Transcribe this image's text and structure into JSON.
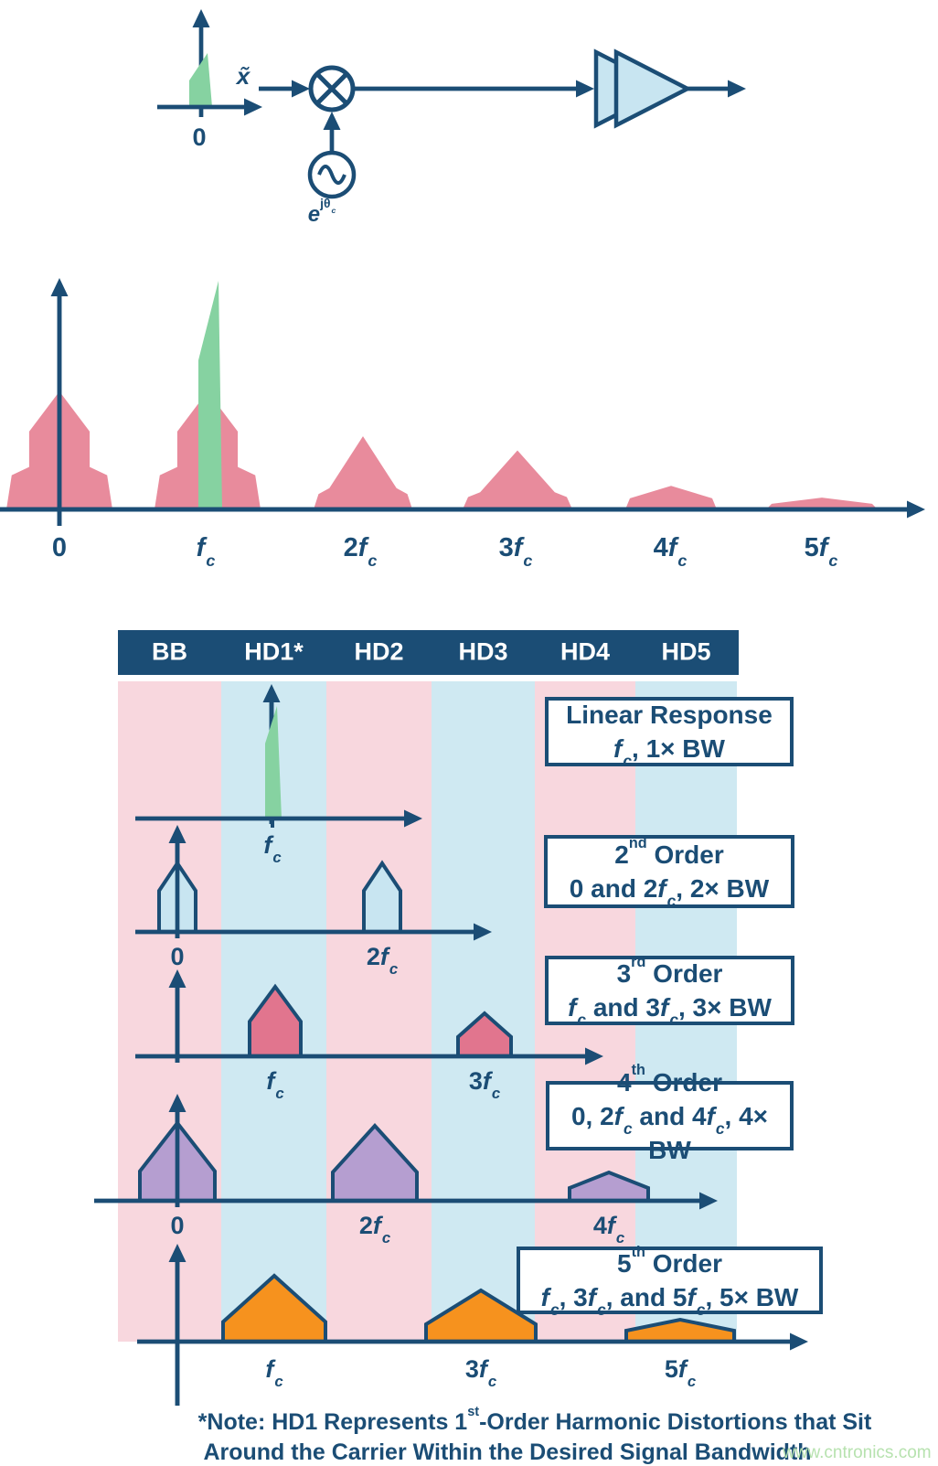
{
  "colors": {
    "navy": "#1b4d75",
    "white": "#ffffff",
    "spectrum_pink": "#e88b9c",
    "band_pink": "#f8d7de",
    "band_blue": "#cfe9f2",
    "shape_blue": "#c8e5f1",
    "green": "#86d2a1",
    "rose": "#e1758e",
    "purple": "#b59ed0",
    "orange": "#f6921e",
    "watermark_green": "#b7e2af"
  },
  "block_diagram": {
    "input_label": "x̃",
    "axis_zero_label": "0",
    "oscillator_label": "e^{jθ_c}",
    "icons": {
      "mixer": "circle-multiply",
      "oscillator": "circle-sine-wave",
      "amplifier": "double-triangle-gain"
    }
  },
  "spectrum": {
    "axis_labels": [
      "0",
      "f_c",
      "2f_c",
      "3f_c",
      "4f_c",
      "5f_c"
    ]
  },
  "chart_data": {
    "type": "area",
    "title": "",
    "categories": [
      "0",
      "f_c",
      "2f_c",
      "3f_c",
      "4f_c",
      "5f_c"
    ],
    "values": [
      1.0,
      1.0,
      0.62,
      0.5,
      0.2,
      0.1
    ],
    "xlabel": "",
    "ylabel": "",
    "legend_position": "none",
    "grid": false
  },
  "harmonic_table": {
    "columns": [
      {
        "label": "BB",
        "band": "pink"
      },
      {
        "label": "HD1*",
        "band": "blue"
      },
      {
        "label": "HD2",
        "band": "pink"
      },
      {
        "label": "HD3",
        "band": "blue"
      },
      {
        "label": "HD4",
        "band": "pink"
      },
      {
        "label": "HD5",
        "band": "blue"
      }
    ],
    "rows": [
      {
        "id": "linear",
        "box_line1": "Linear Response",
        "box_line2": "f_c, 1× BW",
        "tick_labels": [
          "f_c"
        ]
      },
      {
        "id": "order-2",
        "box_line1": "2^{nd} Order",
        "box_line2": "0 and 2f_c, 2× BW",
        "tick_labels": [
          "0",
          "2f_c"
        ]
      },
      {
        "id": "order-3",
        "box_line1": "3^{rd} Order",
        "box_line2": "f_c and 3f_c, 3× BW",
        "tick_labels": [
          "f_c",
          "3f_c"
        ]
      },
      {
        "id": "order-4",
        "box_line1": "4^{th} Order",
        "box_line2": "0, 2f_c and 4f_c, 4× BW",
        "tick_labels": [
          "0",
          "2f_c",
          "4f_c"
        ]
      },
      {
        "id": "order-5",
        "box_line1": "5^{th} Order",
        "box_line2": "f_c, 3f_c, and 5f_c, 5× BW",
        "tick_labels": [
          "f_c",
          "3f_c",
          "5f_c"
        ]
      }
    ]
  },
  "note_line1": "*Note: HD1 Represents 1^{st}-Order Harmonic Distortions that Sit",
  "note_line2": "Around the Carrier Within the Desired Signal Bandwidth",
  "watermark": "www.cntronics.com"
}
